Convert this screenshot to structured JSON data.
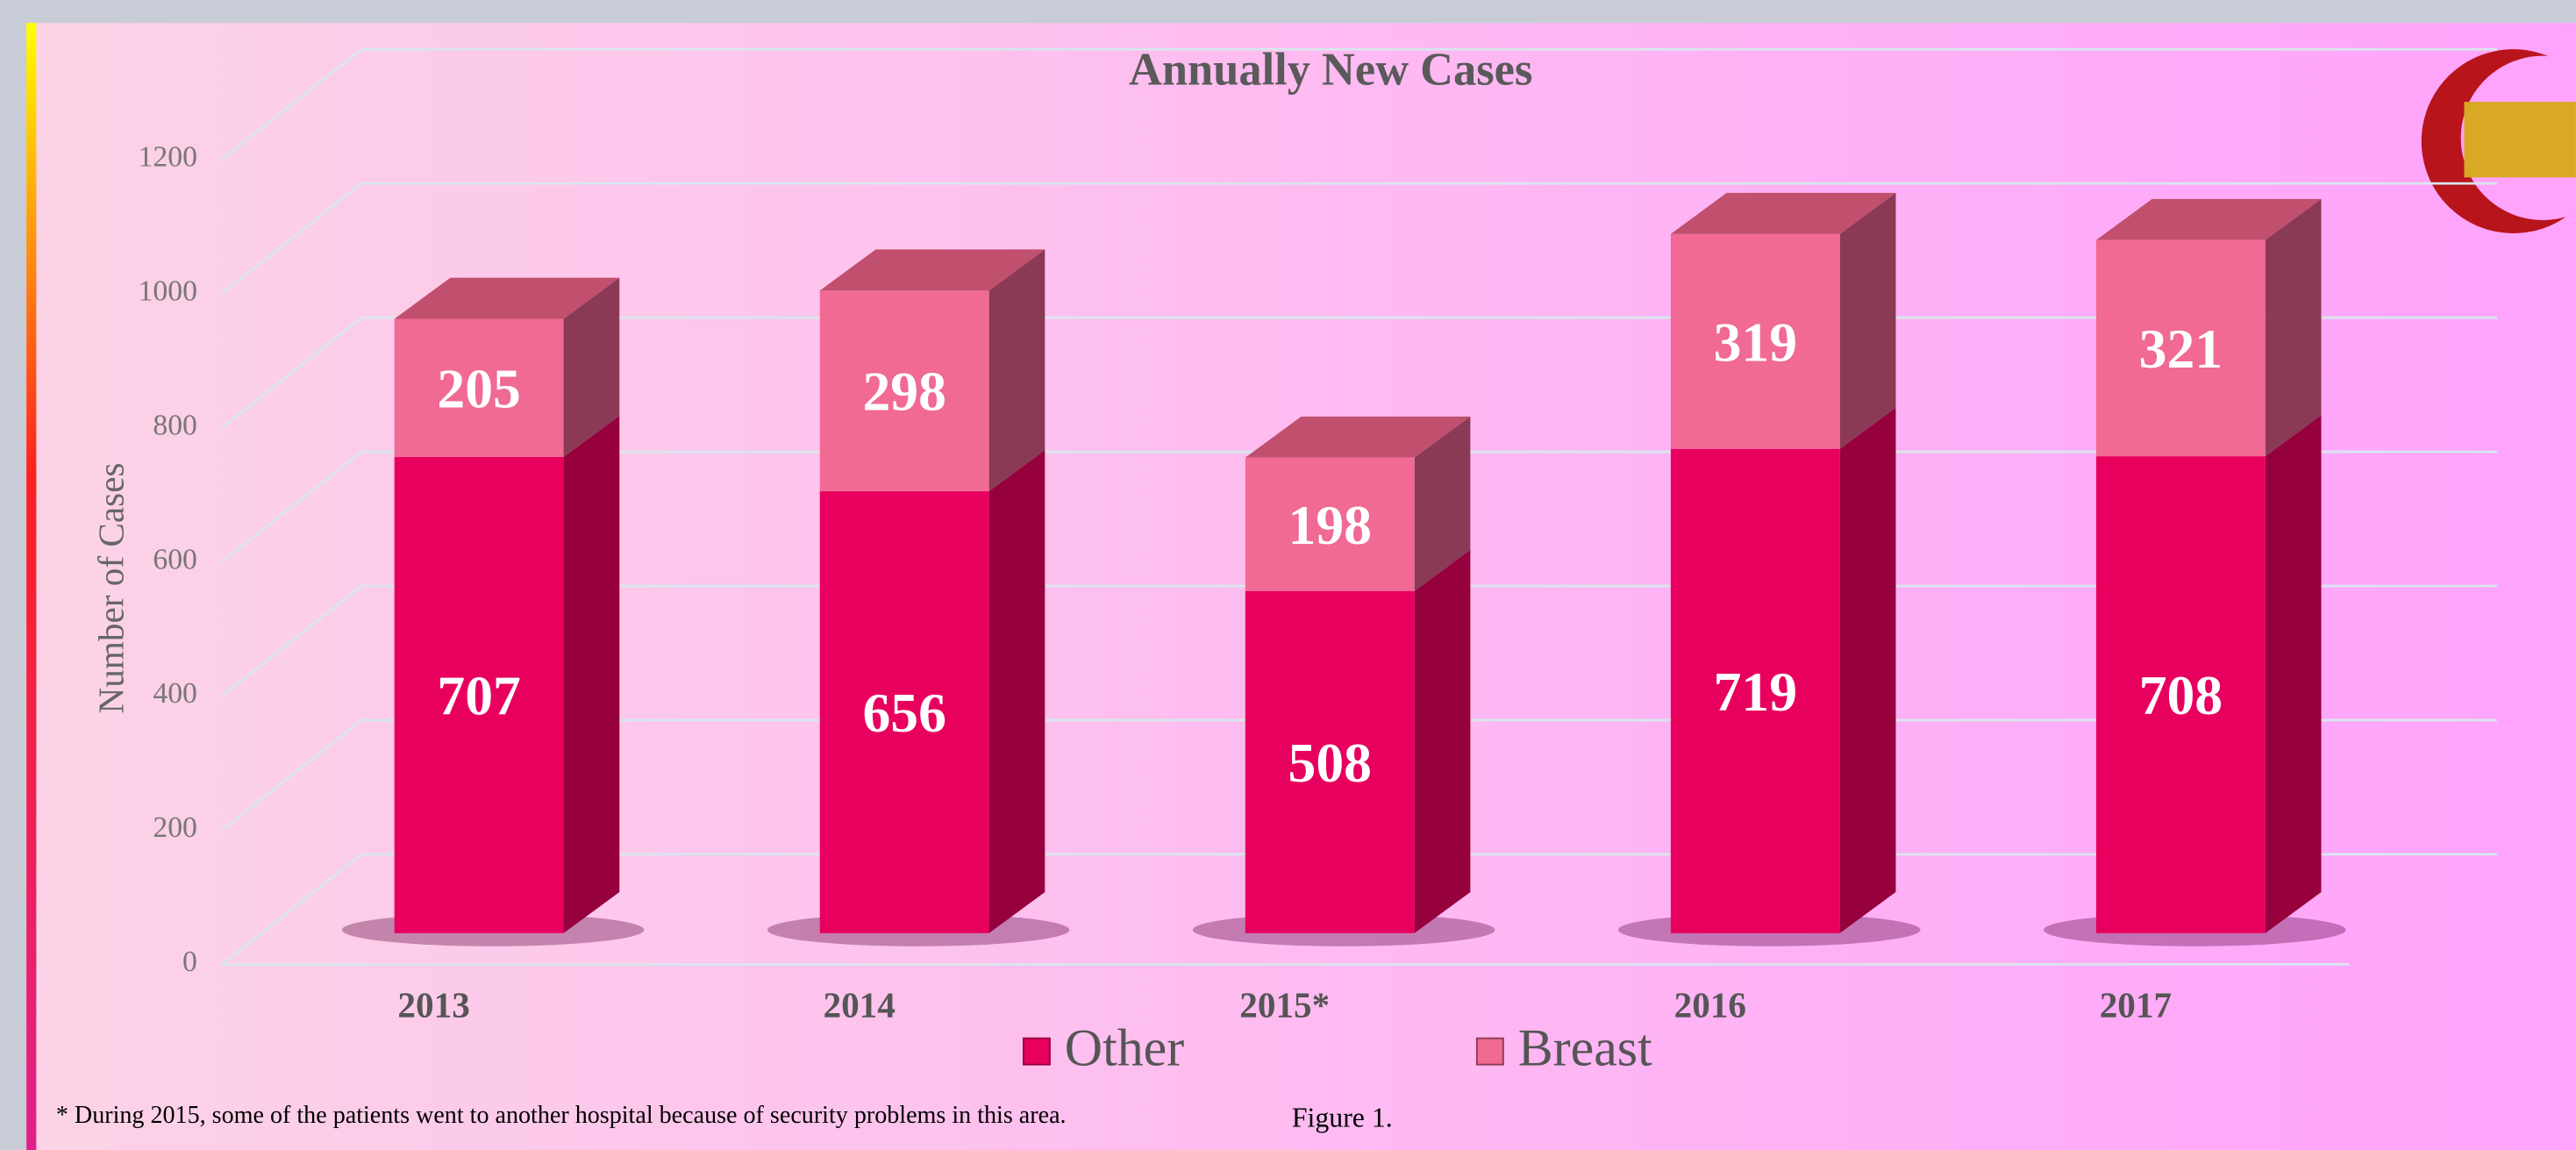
{
  "chart_data": {
    "type": "bar",
    "stacked": true,
    "title": "Annually New Cases",
    "y_label": "Number of Cases",
    "categories": [
      "2013",
      "2014",
      "2015*",
      "2016",
      "2017"
    ],
    "series": [
      {
        "name": "Other",
        "color": "#e8005f",
        "values": [
          707,
          656,
          508,
          719,
          708
        ]
      },
      {
        "name": "Breast",
        "color": "#f06a93",
        "values": [
          205,
          298,
          198,
          319,
          321
        ]
      }
    ],
    "ylim": [
      0,
      1200
    ],
    "yticks": [
      0,
      200,
      400,
      600,
      800,
      1000,
      1200
    ],
    "grid": true,
    "legend": "bottom",
    "footnote": "* During 2015, some of the patients went to another hospital because of security problems in this area.",
    "caption": "Figure 1."
  }
}
